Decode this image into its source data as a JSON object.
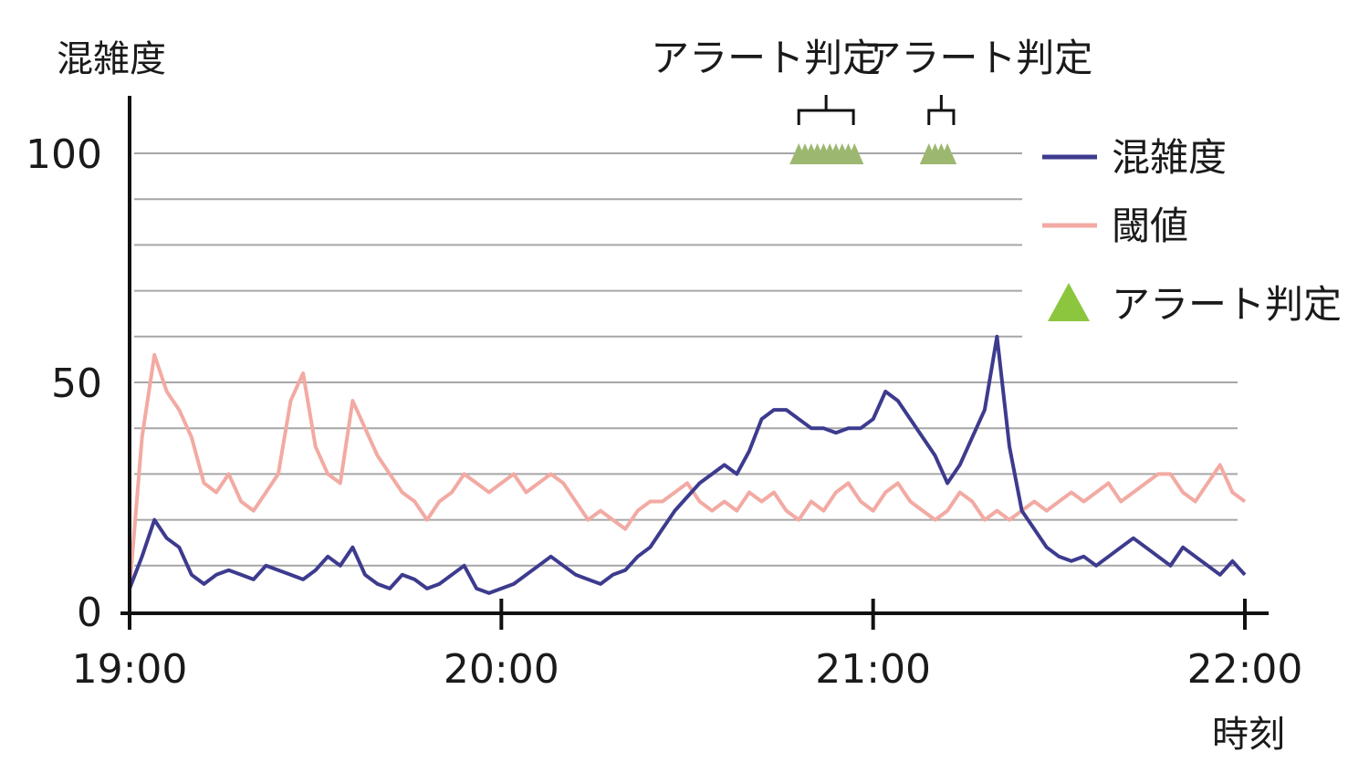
{
  "chart_data": {
    "type": "line",
    "title": "",
    "ylabel": "混雑度",
    "xlabel": "時刻",
    "ylim": [
      0,
      100
    ],
    "y_ticks": [
      "0",
      "50",
      "100"
    ],
    "x_range": [
      "19:00",
      "22:00"
    ],
    "x_ticks": [
      "19:00",
      "20:00",
      "21:00",
      "22:00"
    ],
    "grid": "horizontal every 10",
    "legend_position": "right",
    "series": [
      {
        "name": "混雑度",
        "color": "#3d3b8e",
        "x": [
          "19:00",
          "19:02",
          "19:04",
          "19:06",
          "19:08",
          "19:10",
          "19:12",
          "19:14",
          "19:16",
          "19:18",
          "19:20",
          "19:22",
          "19:24",
          "19:26",
          "19:28",
          "19:30",
          "19:32",
          "19:34",
          "19:36",
          "19:38",
          "19:40",
          "19:42",
          "19:44",
          "19:46",
          "19:48",
          "19:50",
          "19:52",
          "19:54",
          "19:56",
          "19:58",
          "20:00",
          "20:02",
          "20:04",
          "20:06",
          "20:08",
          "20:10",
          "20:12",
          "20:14",
          "20:16",
          "20:18",
          "20:20",
          "20:22",
          "20:24",
          "20:26",
          "20:28",
          "20:30",
          "20:32",
          "20:34",
          "20:36",
          "20:38",
          "20:40",
          "20:42",
          "20:44",
          "20:46",
          "20:48",
          "20:50",
          "20:52",
          "20:54",
          "20:56",
          "20:58",
          "21:00",
          "21:02",
          "21:04",
          "21:06",
          "21:08",
          "21:10",
          "21:12",
          "21:14",
          "21:16",
          "21:18",
          "21:20",
          "21:22",
          "21:24",
          "21:26",
          "21:28",
          "21:30",
          "21:32",
          "21:34",
          "21:36",
          "21:38",
          "21:40",
          "21:42",
          "21:44",
          "21:46",
          "21:48",
          "21:50",
          "21:52",
          "21:54",
          "21:56",
          "21:58",
          "22:00"
        ],
        "values": [
          5,
          12,
          20,
          16,
          14,
          8,
          6,
          8,
          9,
          8,
          7,
          10,
          9,
          8,
          7,
          9,
          12,
          10,
          14,
          8,
          6,
          5,
          8,
          7,
          5,
          6,
          8,
          10,
          5,
          4,
          5,
          6,
          8,
          10,
          12,
          10,
          8,
          7,
          6,
          8,
          9,
          12,
          14,
          18,
          22,
          25,
          28,
          30,
          32,
          30,
          35,
          42,
          44,
          44,
          42,
          40,
          40,
          39,
          40,
          40,
          42,
          48,
          46,
          42,
          38,
          34,
          28,
          32,
          38,
          44,
          60,
          36,
          22,
          18,
          14,
          12,
          11,
          12,
          10,
          12,
          14,
          16,
          14,
          12,
          10,
          14,
          12,
          10,
          8,
          11,
          8
        ]
      },
      {
        "name": "閾値",
        "color": "#f2aaa3",
        "x": [
          "19:00",
          "19:02",
          "19:04",
          "19:06",
          "19:08",
          "19:10",
          "19:12",
          "19:14",
          "19:16",
          "19:18",
          "19:20",
          "19:22",
          "19:24",
          "19:26",
          "19:28",
          "19:30",
          "19:32",
          "19:34",
          "19:36",
          "19:38",
          "19:40",
          "19:42",
          "19:44",
          "19:46",
          "19:48",
          "19:50",
          "19:52",
          "19:54",
          "19:56",
          "19:58",
          "20:00",
          "20:02",
          "20:04",
          "20:06",
          "20:08",
          "20:10",
          "20:12",
          "20:14",
          "20:16",
          "20:18",
          "20:20",
          "20:22",
          "20:24",
          "20:26",
          "20:28",
          "20:30",
          "20:32",
          "20:34",
          "20:36",
          "20:38",
          "20:40",
          "20:42",
          "20:44",
          "20:46",
          "20:48",
          "20:50",
          "20:52",
          "20:54",
          "20:56",
          "20:58",
          "21:00",
          "21:02",
          "21:04",
          "21:06",
          "21:08",
          "21:10",
          "21:12",
          "21:14",
          "21:16",
          "21:18",
          "21:20",
          "21:22",
          "21:24",
          "21:26",
          "21:28",
          "21:30",
          "21:32",
          "21:34",
          "21:36",
          "21:38",
          "21:40",
          "21:42",
          "21:44",
          "21:46",
          "21:48",
          "21:50",
          "21:52",
          "21:54",
          "21:56",
          "21:58",
          "22:00"
        ],
        "values": [
          5,
          38,
          56,
          48,
          44,
          38,
          28,
          26,
          30,
          24,
          22,
          26,
          30,
          46,
          52,
          36,
          30,
          28,
          46,
          40,
          34,
          30,
          26,
          24,
          20,
          24,
          26,
          30,
          28,
          26,
          28,
          30,
          26,
          28,
          30,
          28,
          24,
          20,
          22,
          20,
          18,
          22,
          24,
          24,
          26,
          28,
          24,
          22,
          24,
          22,
          26,
          24,
          26,
          22,
          20,
          24,
          22,
          26,
          28,
          24,
          22,
          26,
          28,
          24,
          22,
          20,
          22,
          26,
          24,
          20,
          22,
          20,
          22,
          24,
          22,
          24,
          26,
          24,
          26,
          28,
          24,
          26,
          28,
          30,
          30,
          26,
          24,
          28,
          32,
          26,
          24
        ]
      },
      {
        "name": "アラート判定",
        "color": "#8cc63f",
        "marker": "triangle",
        "points": [
          {
            "x": "20:48",
            "y": 100
          },
          {
            "x": "20:49",
            "y": 100
          },
          {
            "x": "20:50",
            "y": 100
          },
          {
            "x": "20:51",
            "y": 100
          },
          {
            "x": "20:52",
            "y": 100
          },
          {
            "x": "20:53",
            "y": 100
          },
          {
            "x": "20:54",
            "y": 100
          },
          {
            "x": "20:55",
            "y": 100
          },
          {
            "x": "20:56",
            "y": 100
          },
          {
            "x": "20:57",
            "y": 100
          },
          {
            "x": "21:09",
            "y": 100
          },
          {
            "x": "21:10",
            "y": 100
          },
          {
            "x": "21:11",
            "y": 100
          },
          {
            "x": "21:12",
            "y": 100
          }
        ]
      }
    ],
    "annotations": [
      {
        "text": "アラート判定",
        "x_start": "20:48",
        "x_end": "20:58"
      },
      {
        "text": "アラート判定",
        "x_start": "21:09",
        "x_end": "21:13"
      }
    ]
  }
}
